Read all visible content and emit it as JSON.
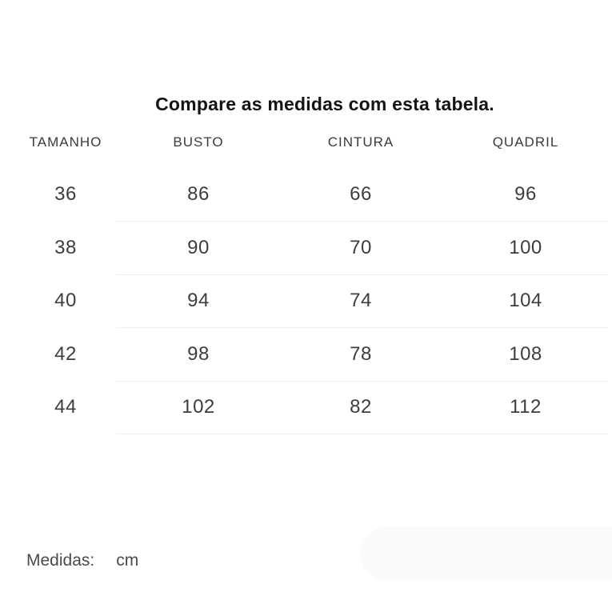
{
  "chart_data": {
    "type": "table",
    "title": "Compare as medidas com esta tabela.",
    "columns": [
      "TAMANHO",
      "BUSTO",
      "CINTURA",
      "QUADRIL"
    ],
    "rows": [
      [
        36,
        86,
        66,
        96
      ],
      [
        38,
        90,
        70,
        100
      ],
      [
        40,
        94,
        74,
        104
      ],
      [
        42,
        98,
        78,
        108
      ],
      [
        44,
        102,
        82,
        112
      ]
    ],
    "footnote": {
      "label": "Medidas:",
      "value": "cm"
    },
    "layout": {
      "grid": "horizontal row dividers only",
      "header_position": "top",
      "title_position": "top-center"
    }
  },
  "colors": {
    "page_background": "#ffffff",
    "title_text": "#141414",
    "header_text": "#3a3a3a",
    "cell_text": "#3d3d3d",
    "divider": "#ededed",
    "footer_text": "#4a4a4a",
    "background_shape": "#fafafa"
  }
}
